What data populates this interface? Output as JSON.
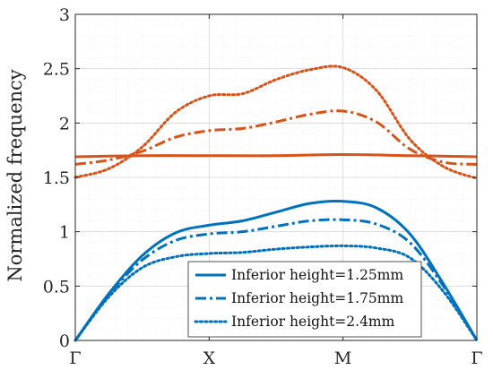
{
  "chart_data": {
    "type": "line",
    "title": "",
    "xlabel": "",
    "ylabel": "Normalized frequency",
    "xlim": [
      0,
      3
    ],
    "ylim": [
      0,
      3
    ],
    "xticks": [
      {
        "value": 0,
        "label": "Γ"
      },
      {
        "value": 1,
        "label": "X"
      },
      {
        "value": 2,
        "label": "M"
      },
      {
        "value": 3,
        "label": "Γ"
      }
    ],
    "yticks": [
      0,
      0.5,
      1,
      1.5,
      2,
      2.5,
      3
    ],
    "ytick_labels": [
      "0",
      "0.5",
      "1",
      "1.5",
      "2",
      "2.5",
      "3"
    ],
    "grid": true,
    "minor_grid": true,
    "legend_position": "bottom-center",
    "colors": {
      "lower_band": "#0072BD",
      "upper_band": "#D95319"
    },
    "legend": [
      {
        "label": "Inferior height=1.25mm",
        "style": "solid"
      },
      {
        "label": "Inferior height=1.75mm",
        "style": "dashdot"
      },
      {
        "label": "Inferior height=2.4mm",
        "style": "dotted"
      }
    ],
    "series": [
      {
        "legend_ref": 0,
        "band": "lower",
        "style": "solid",
        "color": "#0072BD",
        "x": [
          0,
          0.25,
          0.5,
          0.75,
          1.0,
          1.25,
          1.5,
          1.75,
          2.0,
          2.25,
          2.5,
          2.75,
          3.0
        ],
        "y": [
          0,
          0.43,
          0.78,
          0.99,
          1.06,
          1.1,
          1.18,
          1.26,
          1.28,
          1.22,
          0.98,
          0.52,
          0
        ]
      },
      {
        "legend_ref": 1,
        "band": "lower",
        "style": "dashdot",
        "color": "#0072BD",
        "x": [
          0,
          0.25,
          0.5,
          0.75,
          1.0,
          1.25,
          1.5,
          1.75,
          2.0,
          2.25,
          2.5,
          2.75,
          3.0
        ],
        "y": [
          0,
          0.42,
          0.74,
          0.92,
          0.98,
          1.0,
          1.05,
          1.1,
          1.11,
          1.07,
          0.9,
          0.5,
          0
        ]
      },
      {
        "legend_ref": 2,
        "band": "lower",
        "style": "dotted",
        "color": "#0072BD",
        "x": [
          0,
          0.25,
          0.5,
          0.75,
          1.0,
          1.25,
          1.5,
          1.75,
          2.0,
          2.25,
          2.5,
          2.75,
          3.0
        ],
        "y": [
          0,
          0.4,
          0.67,
          0.77,
          0.8,
          0.81,
          0.84,
          0.86,
          0.87,
          0.85,
          0.76,
          0.45,
          0
        ]
      },
      {
        "legend_ref": 0,
        "band": "upper",
        "style": "solid",
        "color": "#D95319",
        "x": [
          0,
          0.5,
          1.0,
          1.5,
          2.0,
          2.5,
          3.0
        ],
        "y": [
          1.69,
          1.7,
          1.7,
          1.7,
          1.71,
          1.7,
          1.69
        ]
      },
      {
        "legend_ref": 1,
        "band": "upper",
        "style": "dashdot",
        "color": "#D95319",
        "x": [
          0,
          0.25,
          0.5,
          0.75,
          1.0,
          1.25,
          1.5,
          1.75,
          2.0,
          2.25,
          2.5,
          2.75,
          3.0
        ],
        "y": [
          1.62,
          1.66,
          1.74,
          1.87,
          1.93,
          1.95,
          2.01,
          2.08,
          2.11,
          2.01,
          1.76,
          1.64,
          1.62
        ]
      },
      {
        "legend_ref": 2,
        "band": "upper",
        "style": "dotted",
        "color": "#D95319",
        "x": [
          0,
          0.25,
          0.5,
          0.75,
          1.0,
          1.25,
          1.5,
          1.75,
          2.0,
          2.25,
          2.5,
          2.75,
          3.0
        ],
        "y": [
          1.5,
          1.58,
          1.78,
          2.1,
          2.25,
          2.27,
          2.4,
          2.49,
          2.51,
          2.3,
          1.85,
          1.6,
          1.49
        ]
      }
    ]
  }
}
